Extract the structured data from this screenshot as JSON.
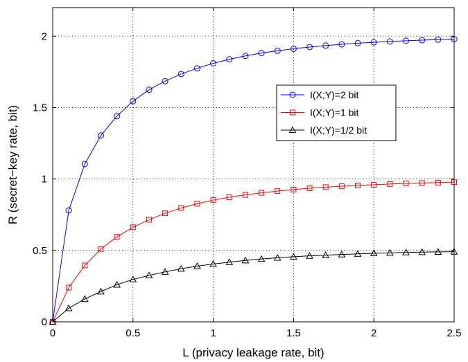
{
  "chart_data": {
    "type": "line",
    "xlabel": "L (privacy leakage rate, bit)",
    "ylabel": "R (secret−key rate, bit)",
    "xlim": [
      0,
      2.5
    ],
    "ylim": [
      0,
      2.2
    ],
    "xticks": [
      0,
      0.5,
      1,
      1.5,
      2,
      2.5
    ],
    "xtick_labels": [
      "0",
      "0.5",
      "1",
      "1.5",
      "2",
      "2.5"
    ],
    "yticks": [
      0,
      0.5,
      1,
      1.5,
      2
    ],
    "ytick_labels": [
      "0",
      "0.5",
      "1",
      "1.5",
      "2"
    ],
    "grid": true,
    "legend_position": "center-right",
    "x": [
      0,
      0.1,
      0.2,
      0.3,
      0.4,
      0.5,
      0.6,
      0.7,
      0.8,
      0.9,
      1.0,
      1.1,
      1.2,
      1.3,
      1.4,
      1.5,
      1.6,
      1.7,
      1.8,
      1.9,
      2.0,
      2.1,
      2.2,
      2.3,
      2.4,
      2.5
    ],
    "series": [
      {
        "name": "I(X;Y)=2 bit",
        "color": "#0000ff",
        "marker": "circle",
        "values": [
          0,
          0.78,
          1.105,
          1.305,
          1.44,
          1.545,
          1.625,
          1.685,
          1.735,
          1.775,
          1.81,
          1.838,
          1.862,
          1.882,
          1.898,
          1.912,
          1.924,
          1.934,
          1.943,
          1.951,
          1.957,
          1.963,
          1.968,
          1.972,
          1.976,
          1.979
        ]
      },
      {
        "name": "I(X;Y)=1 bit",
        "color": "#ff0000",
        "marker": "square",
        "values": [
          0,
          0.24,
          0.395,
          0.51,
          0.595,
          0.662,
          0.715,
          0.76,
          0.797,
          0.827,
          0.852,
          0.872,
          0.889,
          0.903,
          0.915,
          0.926,
          0.935,
          0.943,
          0.949,
          0.955,
          0.96,
          0.965,
          0.969,
          0.972,
          0.975,
          0.978
        ]
      },
      {
        "name": "I(X;Y)=1/2 bit",
        "color": "#000000",
        "marker": "triangle",
        "values": [
          0,
          0.095,
          0.16,
          0.212,
          0.26,
          0.297,
          0.325,
          0.35,
          0.372,
          0.39,
          0.405,
          0.418,
          0.43,
          0.44,
          0.449,
          0.456,
          0.462,
          0.467,
          0.472,
          0.476,
          0.48,
          0.483,
          0.486,
          0.488,
          0.49,
          0.491
        ]
      }
    ]
  }
}
